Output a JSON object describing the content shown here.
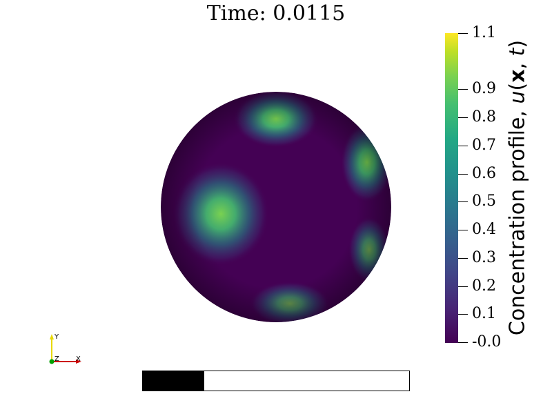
{
  "title": "Time: 0.0115",
  "colorbar": {
    "title_plain": "Concentration profile, ",
    "title_var": "u",
    "title_args_open": "(",
    "title_bold_x": "x",
    "title_args_rest": ", ",
    "title_t": "t",
    "title_close": ")",
    "ticks": [
      {
        "label": "1.1",
        "value": 1.1
      },
      {
        "label": "0.9",
        "value": 0.9
      },
      {
        "label": "0.8",
        "value": 0.8
      },
      {
        "label": "0.7",
        "value": 0.7
      },
      {
        "label": "0.6",
        "value": 0.6
      },
      {
        "label": "0.5",
        "value": 0.5
      },
      {
        "label": "0.4",
        "value": 0.4
      },
      {
        "label": "0.3",
        "value": 0.3
      },
      {
        "label": "0.2",
        "value": 0.2
      },
      {
        "label": "0.1",
        "value": 0.1
      },
      {
        "label": "-0.0",
        "value": 0.0
      }
    ],
    "min": 0.0,
    "max": 1.1
  },
  "progress": {
    "fraction": 0.23
  },
  "axes": {
    "y": "Y",
    "z": "Z",
    "x": "X"
  },
  "colors": {
    "background_sphere": "#440154",
    "spot": "#7ad151",
    "axis_y": "#e8d800",
    "axis_x": "#cc0000",
    "axis_z": "#00a000"
  }
}
